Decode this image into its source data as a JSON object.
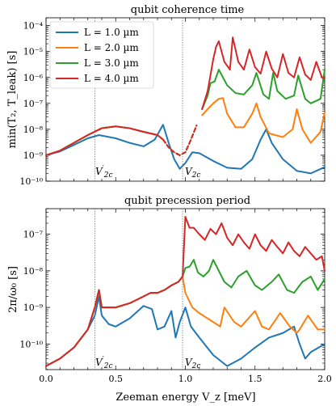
{
  "colors": {
    "L1": "#1f77b4",
    "L2": "#ff7f0e",
    "L3": "#2ca02c",
    "L4": "#d62728",
    "marker_line": "#777777"
  },
  "shared_x": {
    "label": "Zeeman energy V_z [meV]",
    "ticks": [
      "0.0",
      "0.5",
      "1.0",
      "1.5",
      "2.0"
    ],
    "range": [
      0,
      2.0
    ]
  },
  "legend": {
    "placement": "top-left of upper panel",
    "entries": [
      "L = 1.0 µm",
      "L = 2.0 µm",
      "L = 3.0 µm",
      "L = 4.0 µm"
    ]
  },
  "markers": [
    {
      "label": "V′_2c",
      "x": 0.35
    },
    {
      "label": "V_2c",
      "x": 0.98
    }
  ],
  "chart_data": [
    {
      "type": "line",
      "title": "qubit coherence time",
      "ylabel": "min(T₂, T_leak) [s]",
      "yscale": "log",
      "ylim": [
        1e-10,
        0.0002
      ],
      "ytick_labels": [
        "10⁻¹⁰",
        "10⁻⁹",
        "10⁻⁸",
        "10⁻⁷",
        "10⁻⁶",
        "10⁻⁵",
        "10⁻⁴"
      ],
      "ytick_values": [
        1e-10,
        1e-09,
        1e-08,
        1e-07,
        1e-06,
        1e-05,
        0.0001
      ],
      "series": [
        {
          "name": "L = 1.0 µm",
          "color_key": "L1",
          "x": [
            0.0,
            0.1,
            0.2,
            0.3,
            0.38,
            0.5,
            0.6,
            0.7,
            0.78,
            0.84,
            0.88,
            0.92,
            0.96,
            1.0,
            1.05,
            1.1,
            1.2,
            1.3,
            1.4,
            1.48,
            1.54,
            1.58,
            1.62,
            1.7,
            1.8,
            1.9,
            2.0
          ],
          "y": [
            1e-09,
            1.4e-09,
            2.5e-09,
            4.5e-09,
            6e-09,
            4.5e-09,
            3e-09,
            2.2e-09,
            4e-09,
            1.5e-08,
            3e-09,
            7e-10,
            3e-10,
            5e-10,
            1.3e-09,
            1.2e-09,
            6e-10,
            3.3e-10,
            3e-10,
            7e-10,
            4e-09,
            1e-08,
            3e-09,
            7e-10,
            2.5e-10,
            2e-10,
            3.5e-10
          ]
        },
        {
          "name": "L = 2.0 µm",
          "color_key": "L2",
          "x": [
            0.0,
            0.1,
            0.2,
            0.3,
            0.4,
            0.5,
            0.6,
            0.7,
            0.8,
            0.84,
            0.88,
            0.92,
            0.96,
            1.0,
            1.04,
            1.08,
            1.12,
            1.16,
            1.2,
            1.24,
            1.27,
            1.3,
            1.36,
            1.42,
            1.48,
            1.51,
            1.54,
            1.6,
            1.7,
            1.77,
            1.8,
            1.84,
            1.9,
            1.97,
            2.0
          ],
          "y": [
            1e-09,
            1.5e-09,
            3e-09,
            6e-09,
            1.1e-08,
            1.3e-08,
            1.1e-08,
            8e-09,
            6e-09,
            4e-09,
            2e-09,
            1.3e-09,
            1e-09,
            1.3e-09,
            4e-09,
            1.4e-08,
            3.5e-08,
            6e-08,
            1e-07,
            1.5e-07,
            1.6e-07,
            4e-08,
            1.2e-08,
            1.2e-08,
            4e-08,
            1e-07,
            3e-08,
            7e-09,
            5e-09,
            1e-08,
            6e-08,
            1e-08,
            3e-09,
            8e-09,
            4.5e-08
          ]
        },
        {
          "name": "L = 3.0 µm",
          "color_key": "L3",
          "x": [
            0.0,
            0.1,
            0.2,
            0.3,
            0.4,
            0.5,
            0.6,
            0.7,
            0.8,
            0.84,
            0.88,
            0.92,
            0.96,
            1.0,
            1.04,
            1.08,
            1.12,
            1.16,
            1.18,
            1.21,
            1.24,
            1.3,
            1.36,
            1.42,
            1.48,
            1.51,
            1.56,
            1.6,
            1.63,
            1.66,
            1.72,
            1.78,
            1.81,
            1.86,
            1.9,
            1.97,
            2.0
          ],
          "y": [
            1e-09,
            1.5e-09,
            3e-09,
            6e-09,
            1.1e-08,
            1.3e-08,
            1.1e-08,
            8e-09,
            6e-09,
            4e-09,
            2e-09,
            1.3e-09,
            1e-09,
            1.3e-09,
            4e-09,
            1.4e-08,
            6e-08,
            2e-07,
            6e-07,
            7e-07,
            2e-06,
            5e-07,
            2.5e-07,
            2.2e-07,
            5e-07,
            1.5e-06,
            2.2e-07,
            1.5e-07,
            1.5e-06,
            3e-07,
            1.5e-07,
            2e-07,
            1.2e-06,
            1.5e-07,
            1e-07,
            1.5e-07,
            2e-06
          ]
        },
        {
          "name": "L = 4.0 µm",
          "color_key": "L4",
          "x": [
            0.0,
            0.1,
            0.2,
            0.3,
            0.4,
            0.5,
            0.6,
            0.7,
            0.8,
            0.84,
            0.88,
            0.92,
            0.96,
            1.0,
            1.04,
            1.08,
            1.12,
            1.16,
            1.18,
            1.2,
            1.22,
            1.24,
            1.28,
            1.32,
            1.34,
            1.38,
            1.42,
            1.46,
            1.5,
            1.54,
            1.58,
            1.62,
            1.66,
            1.7,
            1.74,
            1.78,
            1.82,
            1.86,
            1.9,
            1.94,
            1.98,
            2.0
          ],
          "y": [
            1e-09,
            1.5e-09,
            3e-09,
            6e-09,
            1.1e-08,
            1.3e-08,
            1.1e-08,
            8e-09,
            6e-09,
            4e-09,
            2e-09,
            1.3e-09,
            1e-09,
            1.3e-09,
            4e-09,
            1.4e-08,
            6e-08,
            3e-07,
            1.2e-06,
            5e-06,
            1.5e-05,
            2.5e-05,
            4e-06,
            2e-06,
            3.5e-05,
            4e-06,
            2e-06,
            1.2e-05,
            2.5e-06,
            1.4e-06,
            1e-05,
            2.2e-06,
            1e-06,
            8e-06,
            1.5e-06,
            1e-06,
            6e-06,
            1.3e-06,
            8e-07,
            4e-06,
            1e-06,
            1e-06
          ]
        }
      ],
      "dashed_x_range": [
        0.84,
        1.1
      ]
    },
    {
      "type": "line",
      "title": "qubit precession period",
      "ylabel": "2π/ω₀ [s]",
      "yscale": "log",
      "ylim": [
        2e-11,
        5e-07
      ],
      "ytick_labels": [
        "10⁻¹⁰",
        "10⁻⁹",
        "10⁻⁸",
        "10⁻⁷"
      ],
      "ytick_values": [
        1e-10,
        1e-09,
        1e-08,
        1e-07
      ],
      "series": [
        {
          "name": "L = 1.0 µm",
          "color_key": "L1",
          "x": [
            0.0,
            0.1,
            0.2,
            0.3,
            0.35,
            0.38,
            0.4,
            0.45,
            0.5,
            0.6,
            0.7,
            0.76,
            0.8,
            0.85,
            0.9,
            0.93,
            0.96,
            1.0,
            1.04,
            1.1,
            1.2,
            1.3,
            1.4,
            1.5,
            1.6,
            1.7,
            1.78,
            1.82,
            1.86,
            1.9,
            2.0
          ],
          "y": [
            2.5e-11,
            4e-11,
            8e-11,
            2.5e-10,
            6e-10,
            2e-09,
            6e-10,
            3.5e-10,
            3e-10,
            5e-10,
            1.1e-09,
            9e-10,
            2.5e-10,
            3e-10,
            8e-10,
            1.5e-10,
            4e-10,
            1e-09,
            3e-10,
            1.5e-10,
            5e-11,
            2.5e-11,
            4e-11,
            8e-11,
            1.5e-10,
            2e-10,
            3e-10,
            1e-10,
            4e-11,
            6e-11,
            1e-10
          ]
        },
        {
          "name": "L = 2.0 µm",
          "color_key": "L2",
          "x": [
            0.0,
            0.1,
            0.2,
            0.3,
            0.35,
            0.38,
            0.4,
            0.5,
            0.6,
            0.7,
            0.75,
            0.8,
            0.85,
            0.9,
            0.95,
            0.98,
            1.0,
            1.05,
            1.1,
            1.2,
            1.25,
            1.28,
            1.35,
            1.4,
            1.5,
            1.55,
            1.6,
            1.68,
            1.75,
            1.8,
            1.82,
            1.88,
            1.95,
            2.0
          ],
          "y": [
            2.5e-11,
            4e-11,
            8e-11,
            2.5e-10,
            1e-09,
            3e-09,
            1e-09,
            1e-09,
            1.3e-09,
            2e-09,
            2.5e-09,
            2.5e-09,
            3e-09,
            4e-09,
            5e-09,
            7e-09,
            2.5e-09,
            1e-09,
            7e-10,
            4e-10,
            3e-10,
            1e-09,
            4e-10,
            3e-10,
            8e-10,
            3e-10,
            2.5e-10,
            7e-10,
            3e-10,
            2e-10,
            2.5e-10,
            6e-10,
            2.5e-10,
            2.5e-10
          ]
        },
        {
          "name": "L = 3.0 µm",
          "color_key": "L3",
          "x": [
            0.0,
            0.1,
            0.2,
            0.3,
            0.35,
            0.38,
            0.4,
            0.5,
            0.6,
            0.7,
            0.75,
            0.8,
            0.85,
            0.9,
            0.95,
            0.98,
            1.0,
            1.03,
            1.06,
            1.09,
            1.13,
            1.17,
            1.2,
            1.28,
            1.33,
            1.38,
            1.44,
            1.5,
            1.55,
            1.62,
            1.67,
            1.73,
            1.78,
            1.84,
            1.9,
            1.95,
            2.0
          ],
          "y": [
            2.5e-11,
            4e-11,
            8e-11,
            2.5e-10,
            1e-09,
            3e-09,
            1e-09,
            1e-09,
            1.3e-09,
            2e-09,
            2.5e-09,
            2.5e-09,
            3e-09,
            4e-09,
            5e-09,
            7e-09,
            1.2e-08,
            1.3e-08,
            2e-08,
            9e-09,
            7e-09,
            1e-08,
            2e-08,
            5e-09,
            3.5e-09,
            7e-09,
            1e-08,
            4e-09,
            3e-09,
            5e-09,
            8e-09,
            3e-09,
            2.5e-09,
            5e-09,
            7e-09,
            3e-09,
            6e-09
          ]
        },
        {
          "name": "L = 4.0 µm",
          "color_key": "L4",
          "x": [
            0.0,
            0.1,
            0.2,
            0.3,
            0.35,
            0.38,
            0.4,
            0.5,
            0.6,
            0.7,
            0.75,
            0.8,
            0.85,
            0.9,
            0.95,
            0.98,
            1.0,
            1.03,
            1.06,
            1.1,
            1.14,
            1.18,
            1.22,
            1.26,
            1.3,
            1.34,
            1.38,
            1.42,
            1.46,
            1.5,
            1.54,
            1.58,
            1.62,
            1.66,
            1.7,
            1.74,
            1.78,
            1.82,
            1.86,
            1.9,
            1.94,
            1.98,
            2.0
          ],
          "y": [
            2.5e-11,
            4e-11,
            8e-11,
            2.5e-10,
            1e-09,
            3e-09,
            1e-09,
            1e-09,
            1.3e-09,
            2e-09,
            2.5e-09,
            2.5e-09,
            3e-09,
            4e-09,
            5e-09,
            7e-09,
            3e-07,
            1.5e-07,
            1.5e-07,
            1e-07,
            7e-08,
            1.4e-07,
            1e-07,
            2e-07,
            8e-08,
            5e-08,
            1e-07,
            6e-08,
            4e-08,
            1e-07,
            5e-08,
            3.5e-08,
            7e-08,
            4.5e-08,
            3e-08,
            6e-08,
            3.5e-08,
            2.5e-08,
            4.5e-08,
            3e-08,
            2e-08,
            2.5e-08,
            1e-08
          ]
        }
      ]
    }
  ]
}
